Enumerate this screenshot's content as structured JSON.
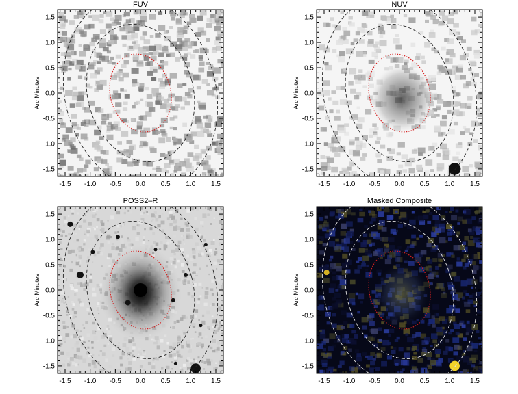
{
  "figure": {
    "panels": [
      {
        "id": "fuv",
        "title": "FUV",
        "ylabel": "Arc Minutes",
        "background": "#f4f4f4",
        "texture": "fuv",
        "contour_colors": {
          "inner": "#d62020",
          "outer": "#222222"
        },
        "source": null
      },
      {
        "id": "nuv",
        "title": "NUV",
        "ylabel": "Arc Minutes",
        "background": "#f5f5f5",
        "texture": "nuv",
        "contour_colors": {
          "inner": "#d62020",
          "outer": "#222222"
        },
        "source": {
          "x": 1.1,
          "y": -1.5,
          "r": 0.12,
          "color": "#101010"
        }
      },
      {
        "id": "poss2r",
        "title": "POSS2–R",
        "ylabel": "Arc Minutes",
        "background": "#d8d8d8",
        "texture": "poss",
        "contour_colors": {
          "inner": "#d62020",
          "outer": "#222222"
        },
        "source": {
          "x": 1.1,
          "y": -1.55,
          "r": 0.1,
          "color": "#111111"
        }
      },
      {
        "id": "composite",
        "title": "Masked Composite",
        "ylabel": "Arc Minutes",
        "background": "#060818",
        "texture": "composite",
        "contour_colors": {
          "inner": "#d62020",
          "outer": "#e8e8e8"
        },
        "source": {
          "x": 1.1,
          "y": -1.5,
          "r": 0.1,
          "color": "#f2d22a"
        }
      }
    ],
    "axes": {
      "xlim": [
        -1.65,
        1.65
      ],
      "ylim": [
        -1.65,
        1.65
      ],
      "xticks": [
        "-1.5",
        "-1.0",
        "-0.5",
        "0.0",
        "0.5",
        "1.0",
        "1.5"
      ],
      "yticks": [
        "-1.5",
        "-1.0",
        "-0.5",
        "0.0",
        "0.5",
        "1.0",
        "1.5"
      ]
    },
    "contours": {
      "inner": {
        "cx": 0.0,
        "cy": 0.0,
        "rx": 0.6,
        "ry": 0.78,
        "angle_deg": -15
      },
      "middle": {
        "cx": 0.0,
        "cy": 0.0,
        "rx": 1.05,
        "ry": 1.38,
        "angle_deg": -15
      },
      "outer": {
        "cx": 0.0,
        "cy": 0.0,
        "rx": 1.5,
        "ry": 1.95,
        "angle_deg": -15
      }
    }
  }
}
